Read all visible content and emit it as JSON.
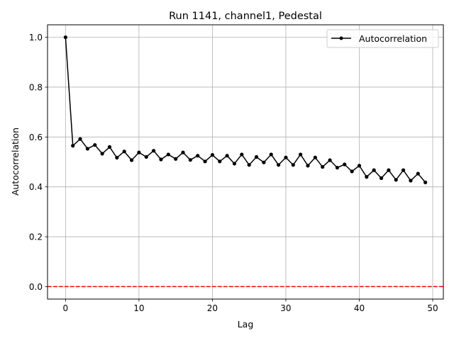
{
  "chart_data": {
    "type": "line",
    "title": "Run 1141, channel1, Pedestal",
    "xlabel": "Lag",
    "ylabel": "Autocorrelation",
    "xlim": [
      -2.45,
      51.45
    ],
    "ylim": [
      -0.05,
      1.05
    ],
    "xticks": [
      0,
      10,
      20,
      30,
      40,
      50
    ],
    "yticks": [
      0.0,
      0.2,
      0.4,
      0.6,
      0.8,
      1.0
    ],
    "xtick_labels": [
      "0",
      "10",
      "20",
      "30",
      "40",
      "50"
    ],
    "ytick_labels": [
      "0.0",
      "0.2",
      "0.4",
      "0.6",
      "0.8",
      "1.0"
    ],
    "grid": true,
    "legend_position": "top-right",
    "series": [
      {
        "name": "Autocorrelation",
        "color": "#000000",
        "marker": "dot",
        "x": [
          0,
          1,
          2,
          3,
          4,
          5,
          6,
          7,
          8,
          9,
          10,
          11,
          12,
          13,
          14,
          15,
          16,
          17,
          18,
          19,
          20,
          21,
          22,
          23,
          24,
          25,
          26,
          27,
          28,
          29,
          30,
          31,
          32,
          33,
          34,
          35,
          36,
          37,
          38,
          39,
          40,
          41,
          42,
          43,
          44,
          45,
          46,
          47,
          48,
          49
        ],
        "y": [
          1.0,
          0.565,
          0.592,
          0.553,
          0.568,
          0.533,
          0.56,
          0.517,
          0.542,
          0.507,
          0.538,
          0.52,
          0.545,
          0.51,
          0.53,
          0.512,
          0.538,
          0.508,
          0.525,
          0.502,
          0.528,
          0.502,
          0.525,
          0.493,
          0.53,
          0.488,
          0.52,
          0.498,
          0.53,
          0.488,
          0.518,
          0.488,
          0.53,
          0.485,
          0.518,
          0.48,
          0.507,
          0.477,
          0.49,
          0.462,
          0.485,
          0.44,
          0.467,
          0.435,
          0.467,
          0.428,
          0.467,
          0.425,
          0.453,
          0.418
        ]
      }
    ],
    "reference_line": {
      "y": 0.0,
      "color": "#ff0000",
      "style": "dashed"
    }
  }
}
